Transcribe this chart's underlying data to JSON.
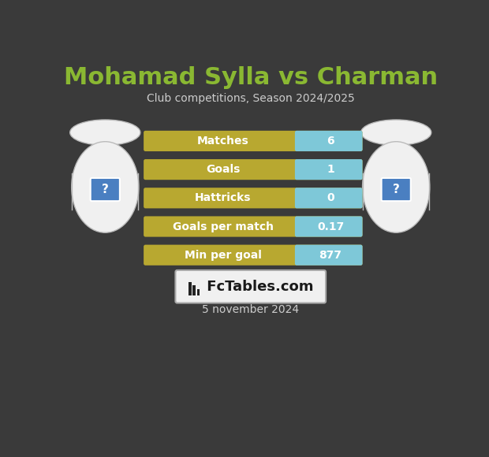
{
  "title": "Mohamad Sylla vs Charman",
  "subtitle": "Club competitions, Season 2024/2025",
  "date": "5 november 2024",
  "background_color": "#3a3a3a",
  "title_color": "#8ab832",
  "subtitle_color": "#cccccc",
  "date_color": "#cccccc",
  "stats": [
    {
      "label": "Matches",
      "value": "6"
    },
    {
      "label": "Goals",
      "value": "1"
    },
    {
      "label": "Hattricks",
      "value": "0"
    },
    {
      "label": "Goals per match",
      "value": "0.17"
    },
    {
      "label": "Min per goal",
      "value": "877"
    }
  ],
  "bar_left_color": "#b8a830",
  "bar_right_color": "#7ec8d8",
  "logo_text": " FcTables.com",
  "logo_bg": "#f0f0f0",
  "logo_border": "#aaaaaa",
  "player_fill": "#f0f0f0",
  "player_edge": "#bbbbbb",
  "qmark_bg": "#4a7fc1",
  "qmark_color": "white"
}
